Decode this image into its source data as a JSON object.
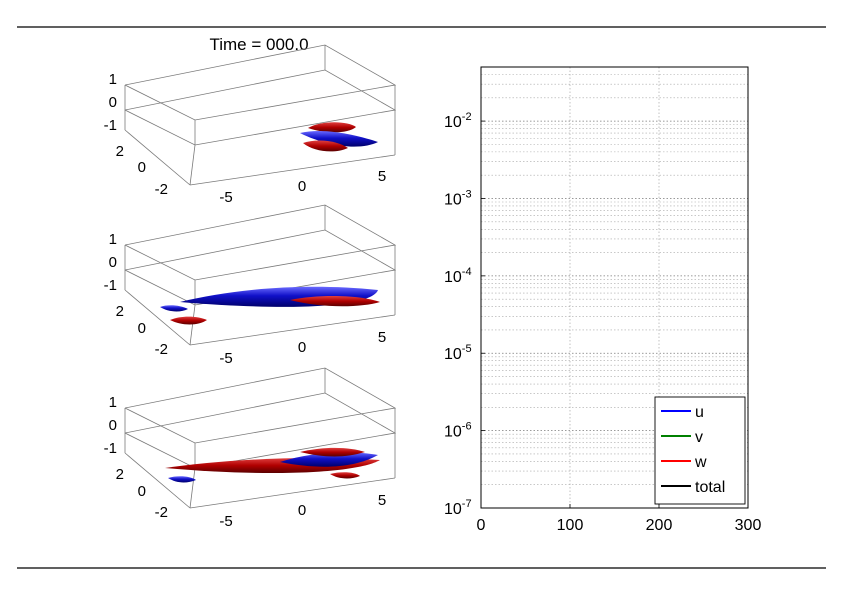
{
  "figure": {
    "title": "Time = 000.0"
  },
  "panels_3d": [
    {
      "z_ticks": [
        "1",
        "0",
        "-1"
      ],
      "y_ticks": [
        "2",
        "0",
        "-2"
      ],
      "x_ticks": [
        "-5",
        "0",
        "5"
      ]
    },
    {
      "z_ticks": [
        "1",
        "0",
        "-1"
      ],
      "y_ticks": [
        "2",
        "0",
        "-2"
      ],
      "x_ticks": [
        "-5",
        "0",
        "5"
      ]
    },
    {
      "z_ticks": [
        "1",
        "0",
        "-1"
      ],
      "y_ticks": [
        "2",
        "0",
        "-2"
      ],
      "x_ticks": [
        "-5",
        "0",
        "5"
      ]
    }
  ],
  "chart_data": {
    "type": "line",
    "title": "",
    "xlabel": "",
    "ylabel": "",
    "xscale": "linear",
    "yscale": "log",
    "xlim": [
      0,
      300
    ],
    "ylim": [
      1e-07,
      0.05
    ],
    "x_ticks": [
      0,
      100,
      200,
      300
    ],
    "y_ticks": [
      {
        "base": "10",
        "exp": "-7",
        "value": 1e-07
      },
      {
        "base": "10",
        "exp": "-6",
        "value": 1e-06
      },
      {
        "base": "10",
        "exp": "-5",
        "value": 1e-05
      },
      {
        "base": "10",
        "exp": "-4",
        "value": 0.0001
      },
      {
        "base": "10",
        "exp": "-3",
        "value": 0.001
      },
      {
        "base": "10",
        "exp": "-2",
        "value": 0.01
      }
    ],
    "grid": true,
    "legend": {
      "position": "bottom-right",
      "entries": [
        {
          "label": "u",
          "color": "#0000ff"
        },
        {
          "label": "v",
          "color": "#008000"
        },
        {
          "label": "w",
          "color": "#ff0000"
        },
        {
          "label": "total",
          "color": "#000000"
        }
      ]
    },
    "series": [
      {
        "name": "u",
        "color": "#0000ff",
        "x": [],
        "y": []
      },
      {
        "name": "v",
        "color": "#008000",
        "x": [],
        "y": []
      },
      {
        "name": "w",
        "color": "#ff0000",
        "x": [],
        "y": []
      },
      {
        "name": "total",
        "color": "#000000",
        "x": [],
        "y": []
      }
    ]
  }
}
